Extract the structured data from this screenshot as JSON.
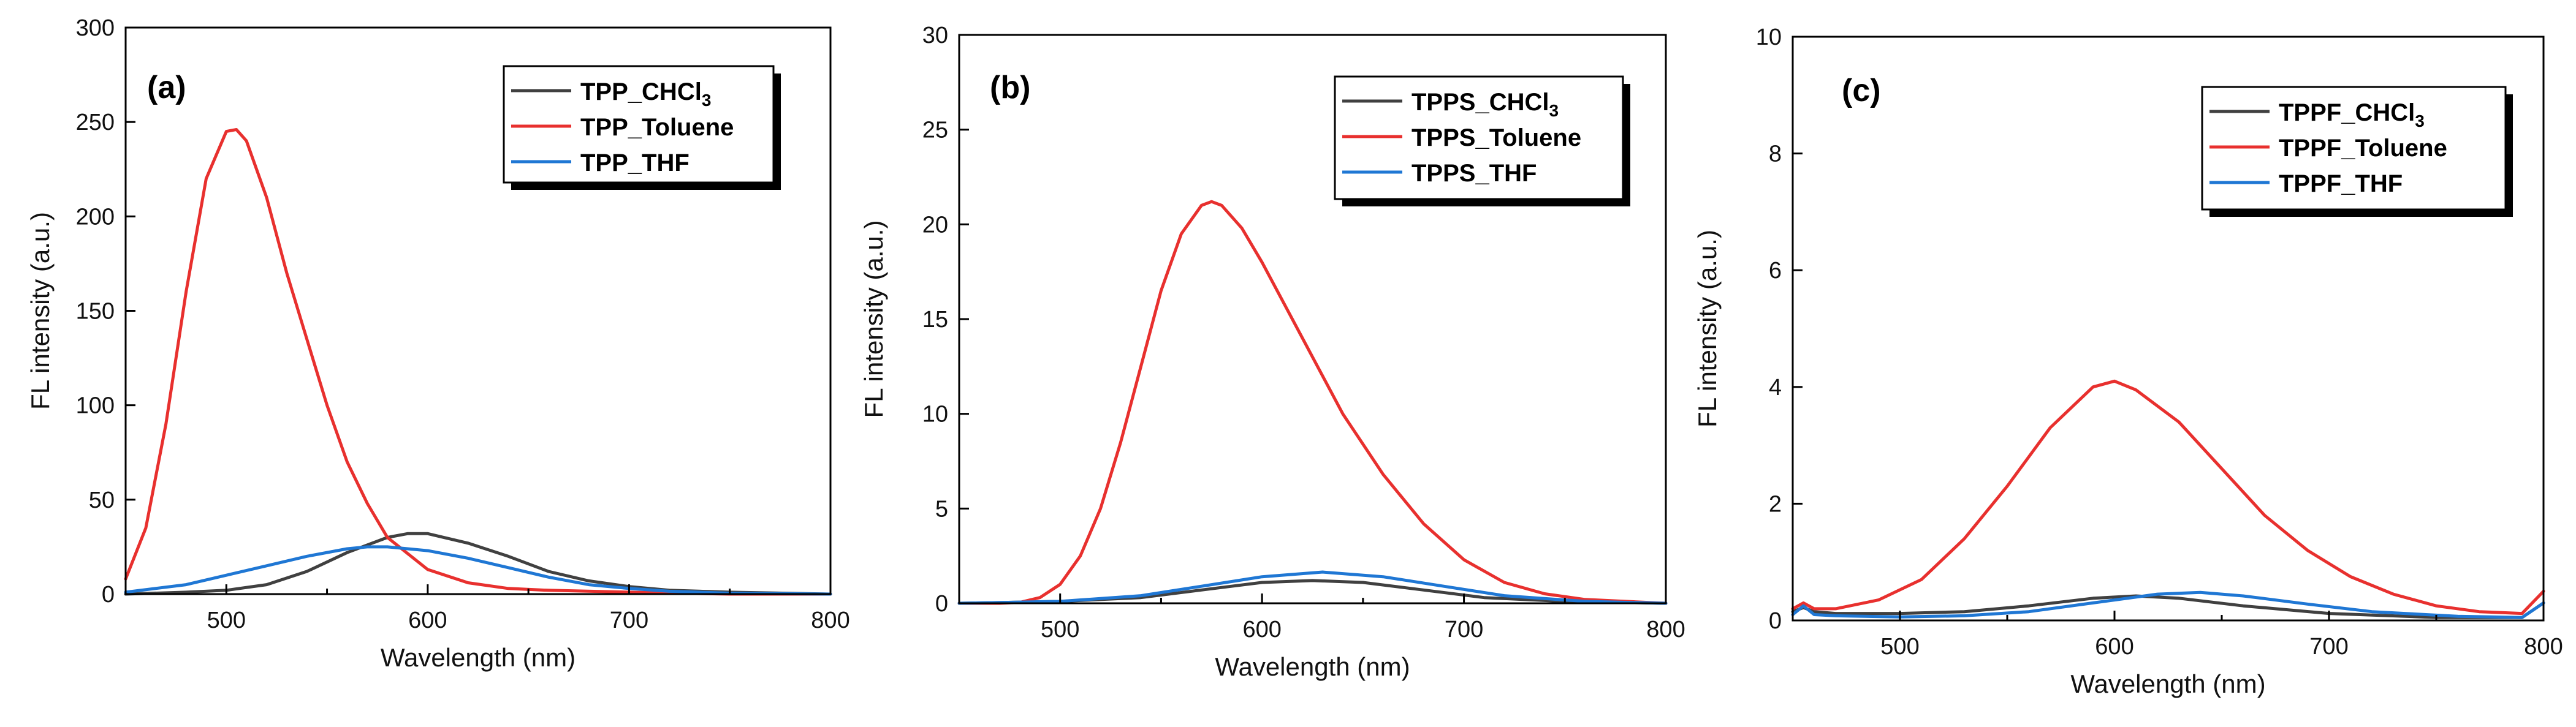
{
  "figure": {
    "panels": [
      {
        "label": "(a)"
      },
      {
        "label": "(b)"
      },
      {
        "label": "(c)"
      }
    ]
  },
  "chart_data": [
    {
      "type": "line",
      "panel_label": "(a)",
      "xlabel": "Wavelength (nm)",
      "ylabel": "FL intensity (a.u.)",
      "xlim": [
        450,
        800
      ],
      "ylim": [
        0,
        300
      ],
      "xticks": [
        500,
        600,
        700,
        800
      ],
      "yticks": [
        0,
        50,
        100,
        150,
        200,
        250,
        300
      ],
      "legend_position": "top-right",
      "series": [
        {
          "name": "TPP_CHCl",
          "subscript": "3",
          "color": "#404040",
          "x": [
            450,
            480,
            500,
            520,
            540,
            560,
            580,
            590,
            600,
            620,
            640,
            660,
            680,
            700,
            720,
            750,
            800
          ],
          "y": [
            0,
            1,
            2,
            5,
            12,
            22,
            30,
            32,
            32,
            27,
            20,
            12,
            7,
            4,
            2,
            1,
            0
          ]
        },
        {
          "name": "TPP_Toluene",
          "color": "#e8302e",
          "x": [
            450,
            460,
            470,
            480,
            490,
            500,
            505,
            510,
            520,
            530,
            540,
            550,
            560,
            570,
            580,
            600,
            620,
            640,
            660,
            700,
            750,
            800
          ],
          "y": [
            8,
            35,
            90,
            160,
            220,
            245,
            246,
            240,
            210,
            170,
            135,
            100,
            70,
            48,
            30,
            13,
            6,
            3,
            2,
            1,
            0,
            0
          ]
        },
        {
          "name": "TPP_THF",
          "color": "#1f77d4",
          "x": [
            450,
            480,
            500,
            520,
            540,
            560,
            570,
            580,
            600,
            620,
            640,
            660,
            680,
            700,
            720,
            750,
            800
          ],
          "y": [
            1,
            5,
            10,
            15,
            20,
            24,
            25,
            25,
            23,
            19,
            14,
            9,
            5,
            3,
            1.5,
            0.5,
            0
          ]
        }
      ]
    },
    {
      "type": "line",
      "panel_label": "(b)",
      "xlabel": "Wavelength (nm)",
      "ylabel": "FL intensity (a.u.)",
      "xlim": [
        450,
        800
      ],
      "ylim": [
        0,
        30
      ],
      "xticks": [
        500,
        600,
        700,
        800
      ],
      "yticks": [
        0,
        5,
        10,
        15,
        20,
        25,
        30
      ],
      "legend_position": "top-right",
      "series": [
        {
          "name": "TPPS_CHCl",
          "subscript": "3",
          "color": "#404040",
          "x": [
            450,
            500,
            540,
            570,
            600,
            625,
            650,
            680,
            710,
            750,
            800
          ],
          "y": [
            0,
            0.1,
            0.3,
            0.7,
            1.1,
            1.2,
            1.1,
            0.7,
            0.3,
            0.1,
            0
          ]
        },
        {
          "name": "TPPS_Toluene",
          "color": "#e8302e",
          "x": [
            450,
            470,
            480,
            490,
            500,
            510,
            520,
            530,
            540,
            550,
            560,
            570,
            575,
            580,
            590,
            600,
            620,
            640,
            660,
            680,
            700,
            720,
            740,
            760,
            780,
            800
          ],
          "y": [
            0,
            0,
            0.05,
            0.3,
            1,
            2.5,
            5,
            8.5,
            12.5,
            16.5,
            19.5,
            21,
            21.2,
            21,
            19.8,
            18,
            14,
            10,
            6.8,
            4.2,
            2.3,
            1.1,
            0.5,
            0.2,
            0.1,
            0
          ]
        },
        {
          "name": "TPPS_THF",
          "color": "#1f77d4",
          "x": [
            450,
            500,
            540,
            570,
            600,
            630,
            660,
            690,
            720,
            760,
            800
          ],
          "y": [
            0,
            0.1,
            0.4,
            0.9,
            1.4,
            1.65,
            1.4,
            0.9,
            0.4,
            0.1,
            0
          ]
        }
      ]
    },
    {
      "type": "line",
      "panel_label": "(c)",
      "xlabel": "Wavelength (nm)",
      "ylabel": "FL intensity (a.u.)",
      "xlim": [
        450,
        800
      ],
      "ylim": [
        0,
        10
      ],
      "xticks": [
        500,
        600,
        700,
        800
      ],
      "yticks": [
        0,
        2,
        4,
        6,
        8,
        10
      ],
      "legend_position": "top-right",
      "series": [
        {
          "name": "TPPF_CHCl",
          "subscript": "3",
          "color": "#404040",
          "x": [
            450,
            455,
            460,
            470,
            500,
            530,
            560,
            590,
            610,
            630,
            660,
            700,
            750,
            790,
            800
          ],
          "y": [
            0.15,
            0.22,
            0.15,
            0.12,
            0.12,
            0.15,
            0.25,
            0.38,
            0.42,
            0.38,
            0.25,
            0.12,
            0.05,
            0.05,
            0.3
          ]
        },
        {
          "name": "TPPF_Toluene",
          "color": "#e8302e",
          "x": [
            450,
            455,
            460,
            470,
            490,
            510,
            530,
            550,
            570,
            590,
            600,
            610,
            630,
            650,
            670,
            690,
            710,
            730,
            750,
            770,
            790,
            800
          ],
          "y": [
            0.2,
            0.3,
            0.2,
            0.2,
            0.35,
            0.7,
            1.4,
            2.3,
            3.3,
            4.0,
            4.1,
            3.95,
            3.4,
            2.6,
            1.8,
            1.2,
            0.75,
            0.45,
            0.25,
            0.15,
            0.12,
            0.5
          ]
        },
        {
          "name": "TPPF_THF",
          "color": "#1f77d4",
          "x": [
            450,
            455,
            460,
            470,
            500,
            530,
            560,
            590,
            620,
            640,
            660,
            690,
            720,
            760,
            790,
            800
          ],
          "y": [
            0.1,
            0.25,
            0.1,
            0.08,
            0.06,
            0.08,
            0.15,
            0.3,
            0.45,
            0.48,
            0.42,
            0.28,
            0.15,
            0.07,
            0.05,
            0.3
          ]
        }
      ]
    }
  ]
}
